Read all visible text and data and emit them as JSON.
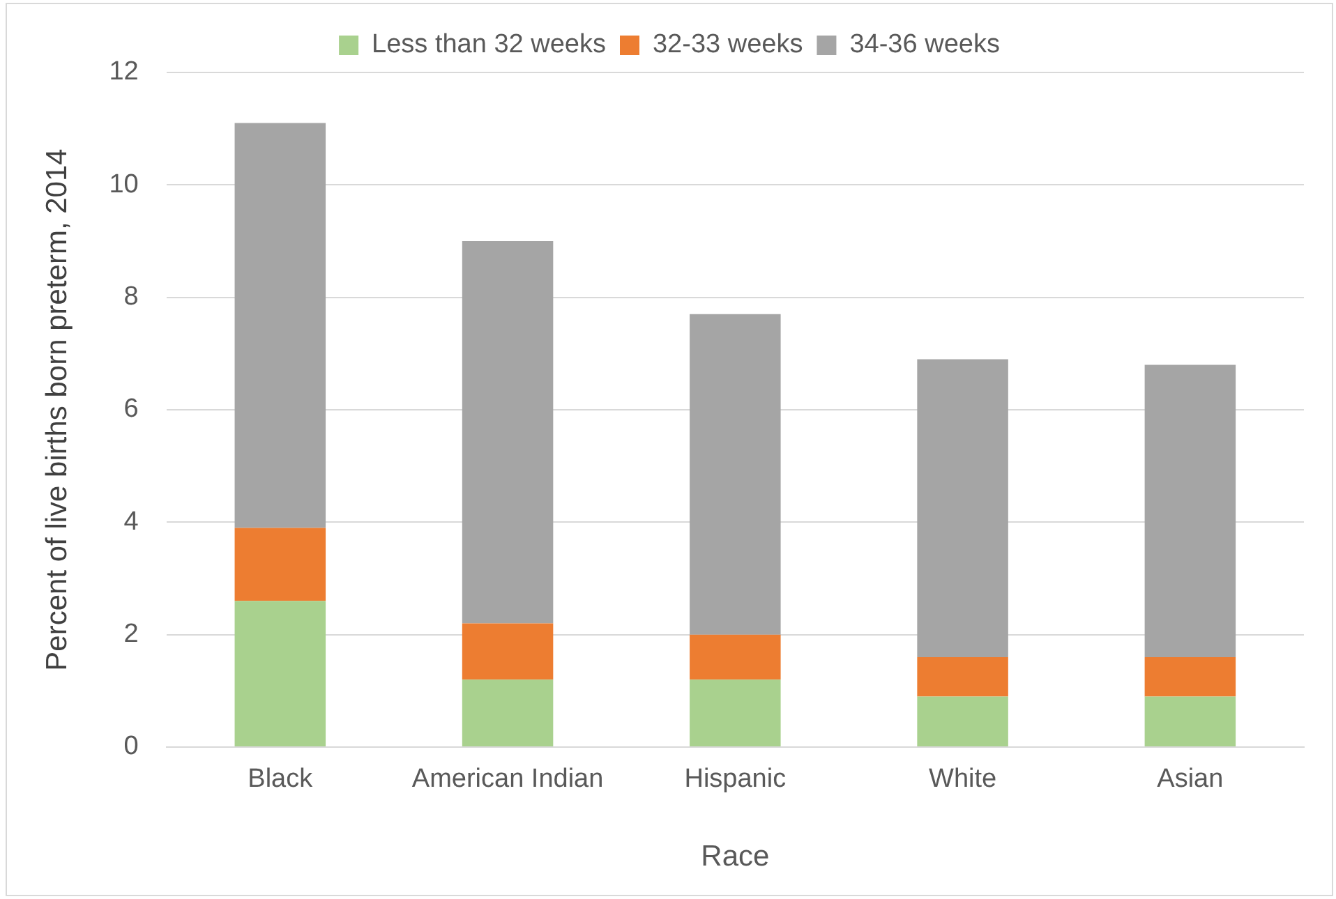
{
  "chart_data": {
    "type": "bar",
    "stacked": true,
    "xlabel": "Race",
    "ylabel": "Percent of live births born preterm, 2014",
    "categories": [
      "Black",
      "American Indian",
      "Hispanic",
      "White",
      "Asian"
    ],
    "series": [
      {
        "name": "Less than 32 weeks",
        "color": "#a9d18e",
        "values": [
          2.6,
          1.2,
          1.2,
          0.9,
          0.9
        ]
      },
      {
        "name": "32-33 weeks",
        "color": "#ed7d31",
        "values": [
          1.3,
          1.0,
          0.8,
          0.7,
          0.7
        ]
      },
      {
        "name": "34-36 weeks",
        "color": "#a5a5a5",
        "values": [
          7.2,
          6.8,
          5.7,
          5.3,
          5.2
        ]
      }
    ],
    "ylim": [
      0,
      12
    ],
    "yticks": [
      0,
      2,
      4,
      6,
      8,
      10,
      12
    ],
    "grid": "y",
    "legend": "top"
  }
}
